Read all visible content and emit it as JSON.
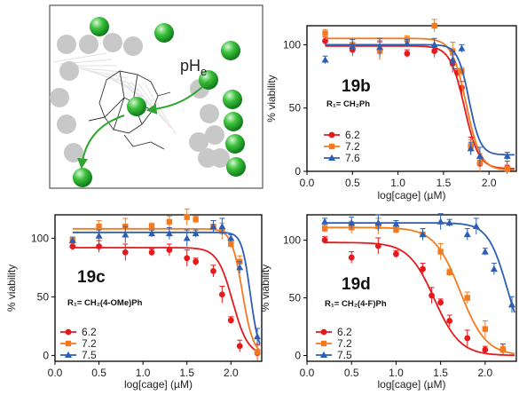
{
  "scheme": {
    "label_main": "pH",
    "label_sub": "e"
  },
  "chart_data": [
    {
      "id": "19b",
      "type": "scatter",
      "compound": "19b",
      "substituent": "R₁= CH₂Ph",
      "xlabel": "log[cage] (µM)",
      "ylabel": "% viability",
      "xlim": [
        0.0,
        2.3
      ],
      "ylim": [
        0,
        115
      ],
      "xticks": [
        "0.0",
        "0.5",
        "1.0",
        "1.5",
        "2.0"
      ],
      "yticks": [
        "0",
        "50",
        "100"
      ],
      "grid": false,
      "legend_position": "bottom-left",
      "series": [
        {
          "name": "6.2",
          "color": "#e41a1c",
          "marker": "circle",
          "top": 99,
          "bottom": 2,
          "ic50": 1.73,
          "hill": 5.5,
          "x": [
            0.2,
            0.5,
            0.8,
            1.1,
            1.4,
            1.6,
            1.65,
            1.7,
            1.8,
            1.9,
            2.2
          ],
          "y": [
            103,
            96,
            96,
            93,
            95,
            85,
            78,
            66,
            20,
            6,
            3
          ]
        },
        {
          "name": "7.2",
          "color": "#f47a20",
          "marker": "square",
          "top": 105,
          "bottom": 1,
          "ic50": 1.75,
          "hill": 5.5,
          "x": [
            0.2,
            0.5,
            0.8,
            1.1,
            1.4,
            1.6,
            1.7,
            1.8,
            1.9,
            2.2
          ],
          "y": [
            109,
            100,
            95,
            104,
            115,
            95,
            79,
            20,
            7,
            2
          ]
        },
        {
          "name": "7.6",
          "color": "#2c5fb4",
          "marker": "triangle",
          "top": 100,
          "bottom": 13,
          "ic50": 1.78,
          "hill": 7,
          "x": [
            0.2,
            0.5,
            0.8,
            1.1,
            1.4,
            1.6,
            1.7,
            1.8,
            1.9,
            2.2
          ],
          "y": [
            88,
            99,
            98,
            101,
            100,
            88,
            97,
            18,
            12,
            12
          ]
        }
      ]
    },
    {
      "id": "19c",
      "type": "scatter",
      "compound": "19c",
      "substituent": "R₁= CH₂(4-OMe)Ph",
      "xlabel": "log[cage] (µM)",
      "ylabel": "% viability",
      "xlim": [
        0.0,
        2.35
      ],
      "ylim": [
        -5,
        120
      ],
      "xticks": [
        "0.0",
        "0.5",
        "1.0",
        "1.5",
        "2.0"
      ],
      "yticks": [
        "0",
        "50",
        "100"
      ],
      "grid": false,
      "legend_position": "bottom-left",
      "series": [
        {
          "name": "6.2",
          "color": "#e41a1c",
          "marker": "circle",
          "top": 92,
          "bottom": 0,
          "ic50": 2.02,
          "hill": 5,
          "x": [
            0.2,
            0.5,
            0.8,
            1.1,
            1.3,
            1.5,
            1.6,
            1.8,
            1.9,
            2.0,
            2.1,
            2.3
          ],
          "y": [
            93,
            93,
            88,
            88,
            90,
            83,
            80,
            72,
            52,
            30,
            8,
            2
          ]
        },
        {
          "name": "7.2",
          "color": "#f47a20",
          "marker": "square",
          "top": 108,
          "bottom": 0,
          "ic50": 2.13,
          "hill": 7,
          "x": [
            0.2,
            0.5,
            0.8,
            1.1,
            1.3,
            1.5,
            1.6,
            1.8,
            1.9,
            2.0,
            2.1,
            2.3
          ],
          "y": [
            98,
            110,
            110,
            110,
            114,
            118,
            116,
            110,
            106,
            95,
            80,
            3
          ]
        },
        {
          "name": "7.5",
          "color": "#2c5fb4",
          "marker": "triangle",
          "top": 105,
          "bottom": 0,
          "ic50": 2.22,
          "hill": 9,
          "x": [
            0.2,
            0.5,
            0.8,
            1.1,
            1.3,
            1.5,
            1.6,
            1.8,
            1.9,
            2.0,
            2.1,
            2.3
          ],
          "y": [
            98,
            102,
            103,
            104,
            104,
            100,
            104,
            110,
            110,
            100,
            75,
            16
          ]
        }
      ]
    },
    {
      "id": "19d",
      "type": "scatter",
      "compound": "19d",
      "substituent": "R₁= CH₂(4-F)Ph",
      "xlabel": "log[cage] (µM)",
      "ylabel": "% viability",
      "xlim": [
        0.0,
        2.35
      ],
      "ylim": [
        -5,
        122
      ],
      "xticks": [
        "0.0",
        "0.5",
        "1.0",
        "1.5",
        "2.0"
      ],
      "yticks": [
        "0",
        "50",
        "100"
      ],
      "grid": false,
      "legend_position": "bottom-left",
      "series": [
        {
          "name": "6.2",
          "color": "#e41a1c",
          "marker": "circle",
          "top": 98,
          "bottom": 0,
          "ic50": 1.43,
          "hill": 3,
          "x": [
            0.2,
            0.5,
            0.8,
            1.0,
            1.3,
            1.4,
            1.5,
            1.6,
            1.8,
            2.0,
            2.2
          ],
          "y": [
            100,
            85,
            95,
            88,
            75,
            52,
            46,
            30,
            15,
            5,
            5
          ]
        },
        {
          "name": "7.2",
          "color": "#f47a20",
          "marker": "square",
          "top": 111,
          "bottom": 0,
          "ic50": 1.72,
          "hill": 3,
          "x": [
            0.2,
            0.5,
            0.8,
            1.0,
            1.3,
            1.5,
            1.6,
            1.8,
            2.0,
            2.2
          ],
          "y": [
            110,
            111,
            112,
            109,
            105,
            90,
            72,
            50,
            23,
            5
          ]
        },
        {
          "name": "7.5",
          "color": "#2c5fb4",
          "marker": "triangle",
          "top": 115,
          "bottom": 0,
          "ic50": 2.25,
          "hill": 4,
          "x": [
            0.2,
            0.5,
            0.8,
            1.0,
            1.3,
            1.5,
            1.6,
            1.8,
            1.9,
            2.0,
            2.1,
            2.3
          ],
          "y": [
            116,
            115,
            115,
            114,
            105,
            116,
            115,
            105,
            112,
            90,
            75,
            44
          ]
        }
      ]
    }
  ]
}
